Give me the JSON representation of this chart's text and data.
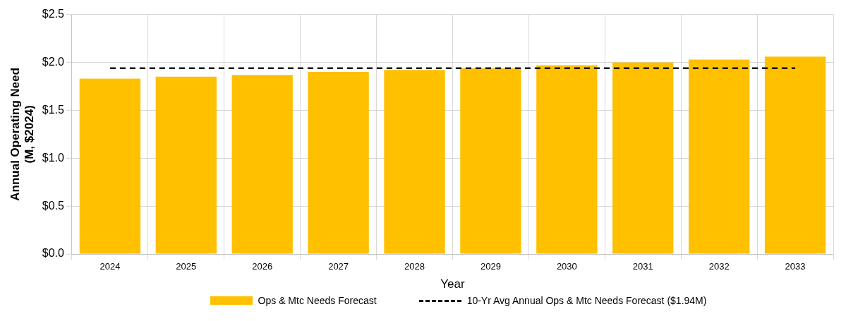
{
  "chart_data": {
    "type": "bar",
    "xlabel": "Year",
    "ylabel": "Annual Operating Need\n(M, $2024)",
    "categories": [
      "2024",
      "2025",
      "2026",
      "2027",
      "2028",
      "2029",
      "2030",
      "2031",
      "2032",
      "2033"
    ],
    "series": [
      {
        "name": "Ops & Mtc Needs Forecast",
        "color": "#ffc000",
        "values": [
          1.83,
          1.85,
          1.87,
          1.9,
          1.92,
          1.94,
          1.97,
          2.0,
          2.03,
          2.06
        ]
      },
      {
        "name": "10-Yr Avg Annual Ops & Mtc Needs Forecast ($1.94M)",
        "type": "line",
        "color": "#000000",
        "line_style": "dashed",
        "marker": "none",
        "values": [
          1.94,
          1.94,
          1.94,
          1.94,
          1.94,
          1.94,
          1.94,
          1.94,
          1.94,
          1.94
        ]
      }
    ],
    "ylim": [
      0,
      2.5
    ],
    "yticks": [
      {
        "value": 0,
        "label": "$0.0"
      },
      {
        "value": 0.5,
        "label": "$0.5"
      },
      {
        "value": 1,
        "label": "$1.0"
      },
      {
        "value": 1.5,
        "label": "$1.5"
      },
      {
        "value": 2,
        "label": "$2.0"
      },
      {
        "value": 2.5,
        "label": "$2.5"
      }
    ],
    "grid": true,
    "legend": "bottom"
  }
}
